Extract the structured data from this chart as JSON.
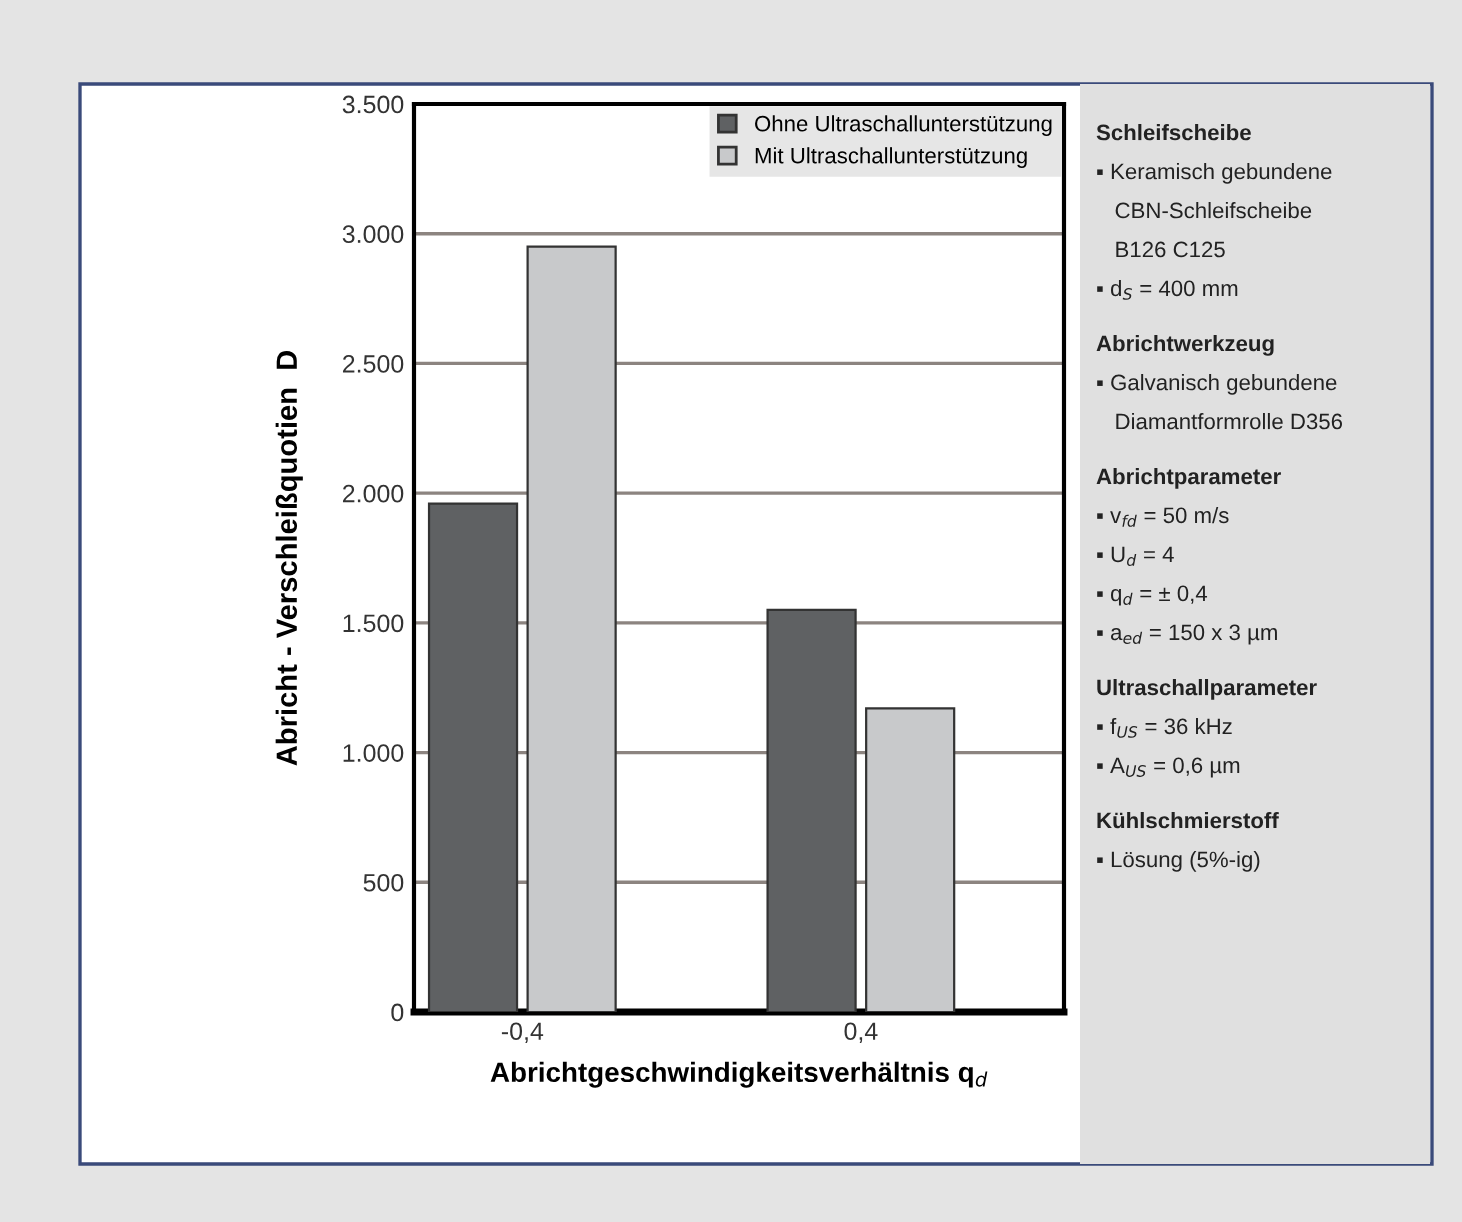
{
  "chart_data": {
    "type": "bar",
    "xlabel": "Abrichtgeschwindigkeitsverhältnis q$_{d}$",
    "ylabel": "Abricht - Verschleißquotien  D",
    "categories": [
      "-0,4",
      "0,4"
    ],
    "series": [
      {
        "name": "Ohne Ultraschallunterstützung",
        "color": "#5f6163",
        "values": [
          1960,
          1550
        ]
      },
      {
        "name": "Mit Ultraschallunterstützung",
        "color": "#c8c9cb",
        "values": [
          2950,
          1170
        ]
      }
    ],
    "ylim": [
      0,
      3500
    ],
    "yticks": [
      0,
      500,
      {
        "value": 1000,
        "label": "1.000"
      },
      {
        "value": 1500,
        "label": "1.500"
      },
      {
        "value": 2000,
        "label": "2.000"
      },
      {
        "value": 2500,
        "label": "2.500"
      },
      {
        "value": 3000,
        "label": "3.000"
      },
      {
        "value": 3500,
        "label": "3.500"
      }
    ],
    "grid": "y",
    "legend": "top right",
    "annotations": [
      "Schleifscheibe\n▪ Keramisch gebundene\n   CBN-Schleifscheibe\n   B126 C125\n▪ d$_{S}$ = 400 mm",
      "Abrichtwerkzeug\n▪ Galvanisch gebundene\n   Diamantformrolle D356",
      "Abrichtparameter\n▪ v$_{fd}$ = 50 m/s\n▪ U$_{d}$ = 4\n▪ q$_{d}$ = ± 0,4\n▪ a$_{ed}$ = 150 x 3 µm",
      "Ultraschallparameter\n▪ f$_{US}$ = 36 kHz\n▪ A$_{US}$ = 0,6 µm",
      "Kühlschmierstoff\n▪ Lösung (5%-ig)"
    ]
  }
}
